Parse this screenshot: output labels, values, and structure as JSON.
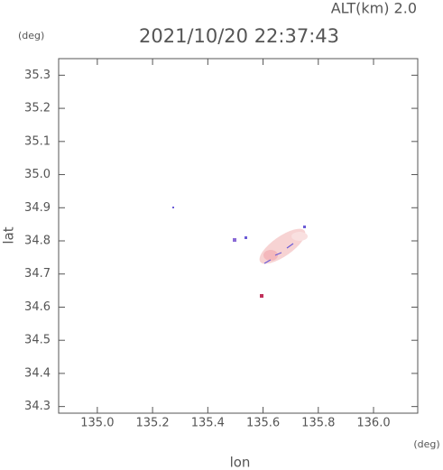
{
  "chart_data": {
    "type": "map",
    "title": "2021/10/20 22:37:43",
    "annotation": "ALT(km) 2.0",
    "y_unit": "(deg)",
    "x_unit": "(deg)",
    "xlabel": "lon",
    "ylabel": "lat",
    "xlim": [
      134.86,
      136.16
    ],
    "ylim": [
      34.28,
      35.35
    ],
    "xticks": [
      {
        "value": 135,
        "label": "135.0"
      },
      135.2,
      135.4,
      135.6,
      135.8,
      {
        "value": 136,
        "label": "136.0"
      }
    ],
    "yticks": [
      34.3,
      34.4,
      34.5,
      34.6,
      34.7,
      34.8,
      34.9,
      {
        "value": 35,
        "label": "35.0"
      },
      35.1,
      35.2,
      35.3
    ]
  }
}
